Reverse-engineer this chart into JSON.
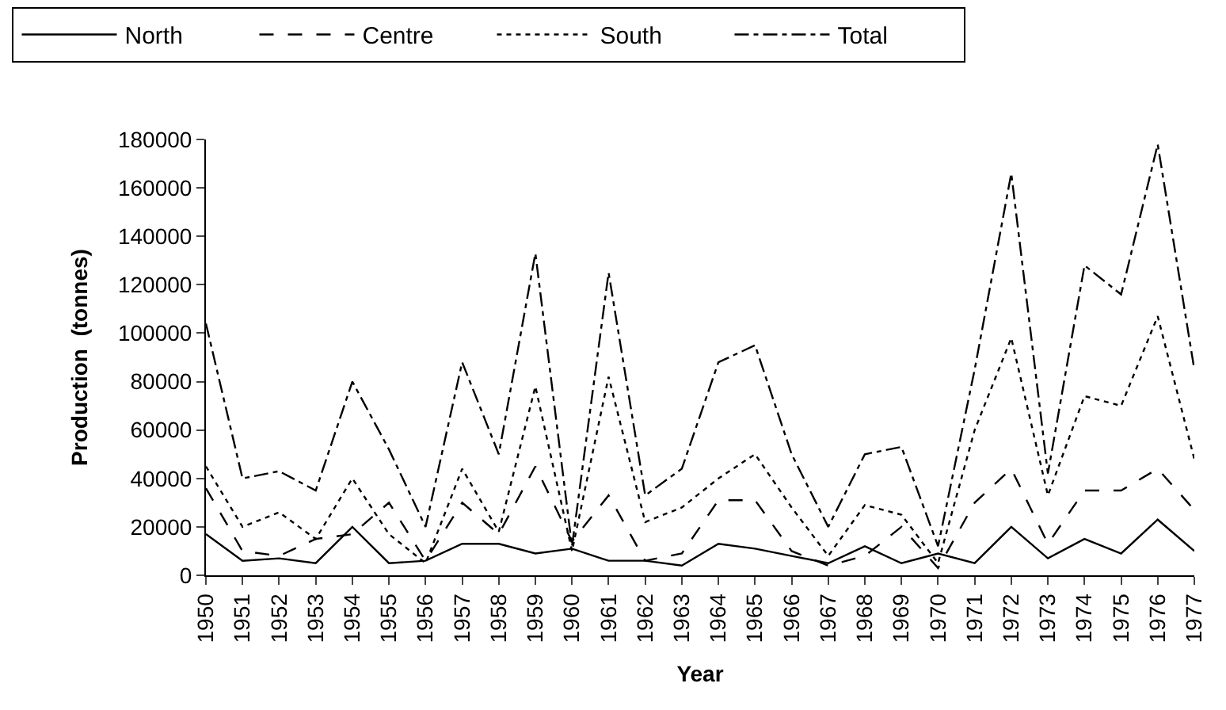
{
  "chart_data": {
    "type": "line",
    "xlabel": "Year",
    "ylabel": "Production  (tonnes)",
    "categories": [
      "1950",
      "1951",
      "1952",
      "1953",
      "1954",
      "1955",
      "1956",
      "1957",
      "1958",
      "1959",
      "1960",
      "1961",
      "1962",
      "1963",
      "1964",
      "1965",
      "1966",
      "1967",
      "1968",
      "1969",
      "1970",
      "1971",
      "1972",
      "1973",
      "1974",
      "1975",
      "1976",
      "1977"
    ],
    "series": [
      {
        "name": "North",
        "color": "#000000",
        "line_style": "solid",
        "values": [
          17000,
          6000,
          7000,
          5000,
          20000,
          5000,
          6000,
          13000,
          13000,
          9000,
          11000,
          6000,
          6000,
          4000,
          13000,
          11000,
          8000,
          5000,
          12000,
          5000,
          9000,
          5000,
          20000,
          7000,
          15000,
          9000,
          23000,
          10000
        ]
      },
      {
        "name": "Centre",
        "color": "#000000",
        "line_style": "dashed",
        "values": [
          36000,
          10000,
          8000,
          15000,
          17000,
          30000,
          6000,
          30000,
          17000,
          45000,
          14000,
          33000,
          6000,
          9000,
          31000,
          31000,
          10000,
          4000,
          8000,
          20000,
          3000,
          30000,
          44000,
          13000,
          35000,
          35000,
          44000,
          27000
        ]
      },
      {
        "name": "South",
        "color": "#000000",
        "line_style": "dotted",
        "values": [
          45000,
          20000,
          26000,
          15000,
          40000,
          17000,
          5000,
          44000,
          18000,
          78000,
          10000,
          82000,
          22000,
          28000,
          40000,
          50000,
          28000,
          8000,
          29000,
          25000,
          5000,
          60000,
          98000,
          33000,
          74000,
          70000,
          107000,
          48000
        ]
      },
      {
        "name": "Total",
        "color": "#000000",
        "line_style": "dashdot",
        "values": [
          104000,
          40000,
          43000,
          35000,
          80000,
          52000,
          20000,
          88000,
          50000,
          133000,
          12000,
          125000,
          33000,
          44000,
          88000,
          95000,
          50000,
          20000,
          50000,
          53000,
          12000,
          85000,
          166000,
          42000,
          128000,
          116000,
          178000,
          85000
        ]
      }
    ],
    "ylim": [
      0,
      180000
    ],
    "yticks": [
      0,
      20000,
      40000,
      60000,
      80000,
      100000,
      120000,
      140000,
      160000,
      180000
    ],
    "legend": "top",
    "marker": "none"
  }
}
